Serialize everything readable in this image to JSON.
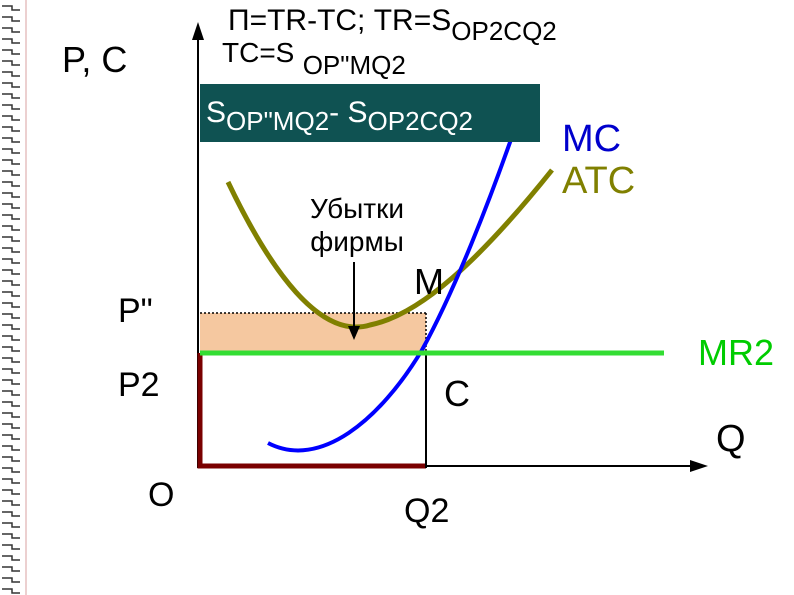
{
  "formulas": {
    "profit_eq": "П=TR-TC;",
    "tr_eq_prefix": "TR=S",
    "tr_eq_sub": "OP2CQ2",
    "tc_eq_prefix": "TC=S",
    "tc_eq_sub": "OP\"MQ2",
    "box_s1": "S",
    "box_sub1": "OP\"MQ2",
    "box_minus": "-",
    "box_s2": "S",
    "box_sub2": "OP2CQ2"
  },
  "annotation": {
    "loss_label": "Убытки фирмы"
  },
  "axes": {
    "y_label": "P, C",
    "x_label": "Q",
    "origin": "O"
  },
  "ticks": {
    "p_atc": "P\"",
    "p2": "P2",
    "q2": "Q2"
  },
  "points": {
    "m": "M",
    "c": "C"
  },
  "curves": {
    "mc": "MC",
    "atc": "ATC",
    "mr": "MR2"
  },
  "colors": {
    "mc": "#0000ff",
    "atc": "#808000",
    "mr": "#33dd33",
    "revenue_rect": "#7a0000",
    "loss_fill": "#f5c8a0",
    "formula_box": "#0f5252"
  }
}
